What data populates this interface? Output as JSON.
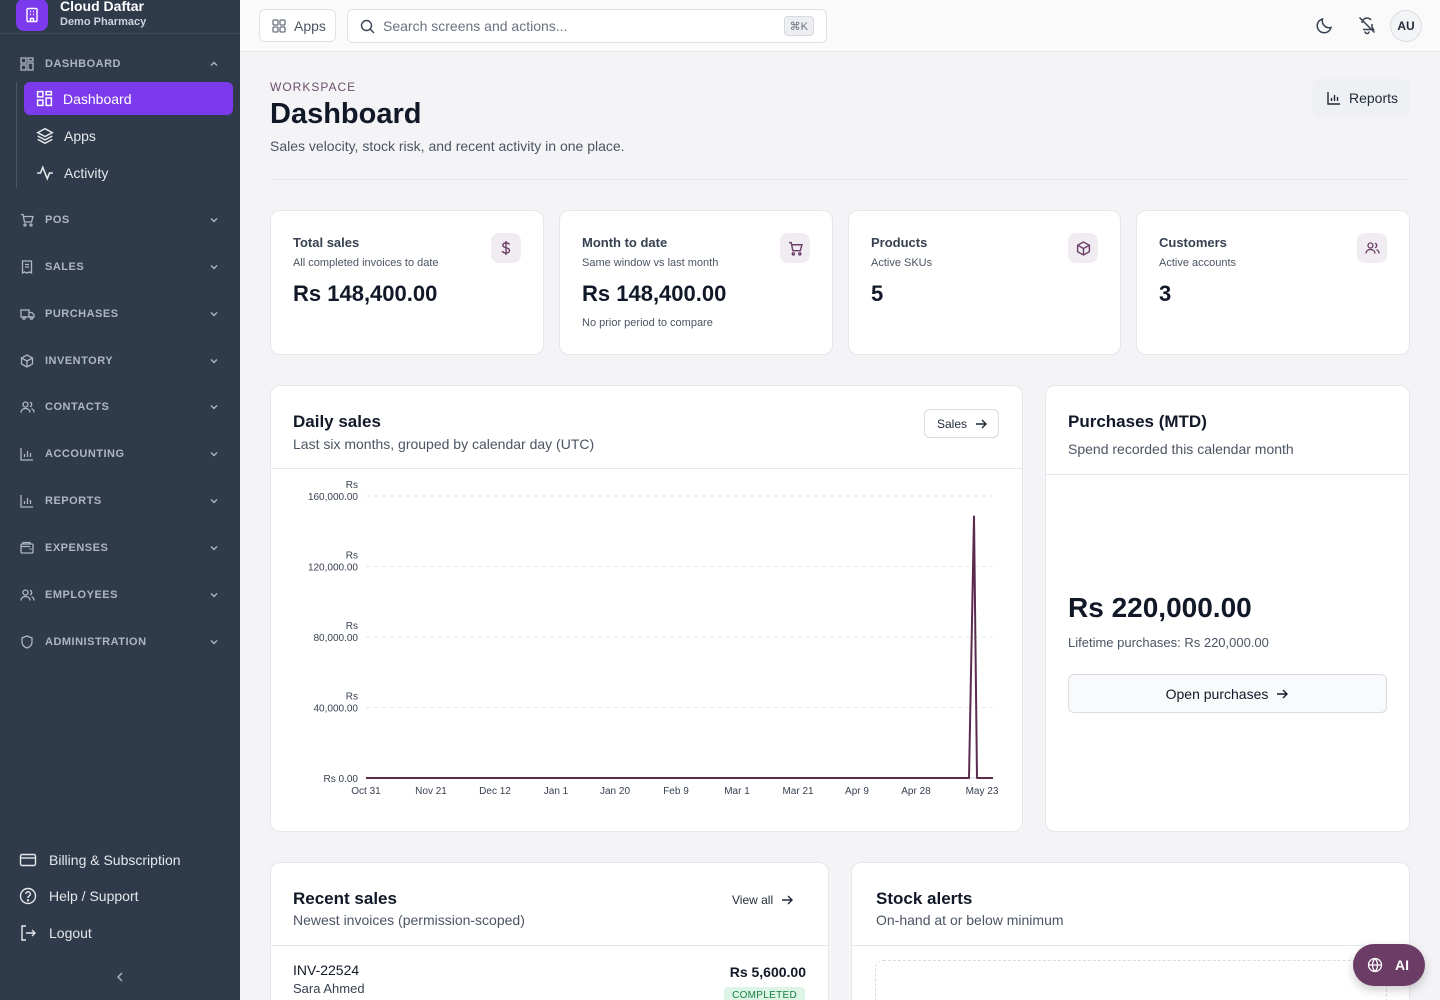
{
  "brand": {
    "name": "Cloud Daftar",
    "subtitle": "Demo Pharmacy"
  },
  "sidebar": {
    "dashboard_section": "DASHBOARD",
    "dashboard_items": [
      {
        "label": "Dashboard",
        "icon": "grid-icon",
        "active": true
      },
      {
        "label": "Apps",
        "icon": "layers-icon"
      },
      {
        "label": "Activity",
        "icon": "activity-icon"
      }
    ],
    "sections": [
      {
        "label": "POS",
        "icon": "cart-icon"
      },
      {
        "label": "SALES",
        "icon": "receipt-icon"
      },
      {
        "label": "PURCHASES",
        "icon": "truck-icon"
      },
      {
        "label": "INVENTORY",
        "icon": "box-icon"
      },
      {
        "label": "CONTACTS",
        "icon": "users-icon"
      },
      {
        "label": "ACCOUNTING",
        "icon": "bar-chart-icon"
      },
      {
        "label": "REPORTS",
        "icon": "bar-chart-icon"
      },
      {
        "label": "EXPENSES",
        "icon": "wallet-icon"
      },
      {
        "label": "EMPLOYEES",
        "icon": "users-icon"
      },
      {
        "label": "ADMINISTRATION",
        "icon": "shield-icon"
      }
    ],
    "footer": [
      {
        "label": "Billing & Subscription",
        "icon": "credit-card-icon"
      },
      {
        "label": "Help / Support",
        "icon": "help-icon"
      },
      {
        "label": "Logout",
        "icon": "logout-icon"
      }
    ]
  },
  "topbar": {
    "apps_label": "Apps",
    "search_placeholder": "Search screens and actions...",
    "search_shortcut": "⌘K",
    "avatar": "AU"
  },
  "header": {
    "eyebrow": "WORKSPACE",
    "title": "Dashboard",
    "subtitle": "Sales velocity, stock risk, and recent activity in one place.",
    "reports_label": "Reports"
  },
  "stats": [
    {
      "title": "Total sales",
      "sub": "All completed invoices to date",
      "value": "Rs 148,400.00",
      "note": "",
      "icon": "dollar-icon"
    },
    {
      "title": "Month to date",
      "sub": "Same window vs last month",
      "value": "Rs 148,400.00",
      "note": "No prior period to compare",
      "icon": "cart-icon"
    },
    {
      "title": "Products",
      "sub": "Active SKUs",
      "value": "5",
      "note": "",
      "icon": "box-icon"
    },
    {
      "title": "Customers",
      "sub": "Active accounts",
      "value": "3",
      "note": "",
      "icon": "users-icon"
    }
  ],
  "daily_sales": {
    "title": "Daily sales",
    "subtitle": "Last six months, grouped by calendar day (UTC)",
    "button_label": "Sales"
  },
  "chart_data": {
    "type": "line",
    "title": "Daily sales",
    "xlabel": "",
    "ylabel": "",
    "x_ticks": [
      "Oct 31",
      "Nov 21",
      "Dec 12",
      "Jan 1",
      "Jan 20",
      "Feb 9",
      "Mar 1",
      "Mar 21",
      "Apr 9",
      "Apr 28",
      "May 23"
    ],
    "y_ticks": [
      {
        "prefix": "Rs",
        "value": "160,000.00"
      },
      {
        "prefix": "Rs",
        "value": "120,000.00"
      },
      {
        "prefix": "Rs",
        "value": "80,000.00"
      },
      {
        "prefix": "Rs",
        "value": "40,000.00"
      },
      {
        "prefix": "",
        "value": "Rs 0.00"
      }
    ],
    "ylim": [
      0,
      160000
    ],
    "grid": true,
    "series": [
      {
        "x": [
          "Oct 31",
          "May 19",
          "May 20",
          "May 21",
          "May 23"
        ],
        "values": [
          0,
          0,
          148400,
          0,
          0
        ]
      }
    ],
    "color": "#5b2a4f"
  },
  "purchases": {
    "title": "Purchases (MTD)",
    "subtitle": "Spend recorded this calendar month",
    "value": "Rs 220,000.00",
    "lifetime": "Lifetime purchases: Rs 220,000.00",
    "button_label": "Open purchases"
  },
  "recent_sales": {
    "title": "Recent sales",
    "subtitle": "Newest invoices (permission-scoped)",
    "view_all": "View all",
    "rows": [
      {
        "invoice": "INV-22524",
        "customer": "Sara Ahmed",
        "amount": "Rs 5,600.00",
        "status": "COMPLETED"
      }
    ]
  },
  "stock_alerts": {
    "title": "Stock alerts",
    "subtitle": "On-hand at or below minimum"
  },
  "ai_button": "AI",
  "colors": {
    "accent": "#7c3aed",
    "sidebar": "#2f3a4a",
    "chart_line": "#5b2a4f"
  }
}
